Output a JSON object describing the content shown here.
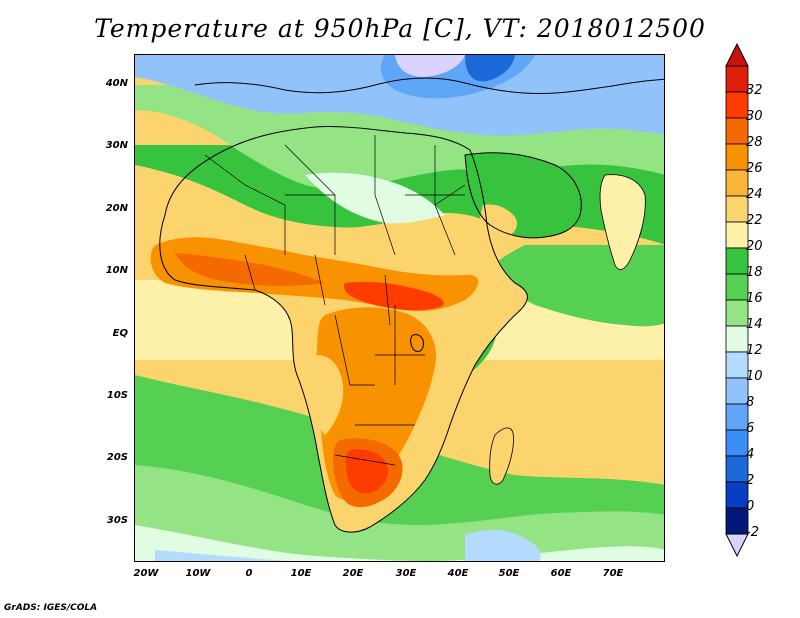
{
  "title": "Temperature at 950hPa [C], VT: 2018012500",
  "footer": "GrADS: IGES/COLA",
  "map": {
    "variable": "Temperature at 950hPa",
    "units": "C",
    "valid_time": "2018012500",
    "lon_range": [
      -20,
      80
    ],
    "lat_range": [
      -35,
      45
    ],
    "lat_ticks": [
      {
        "value": 40,
        "label": "40N"
      },
      {
        "value": 30,
        "label": "30N"
      },
      {
        "value": 20,
        "label": "20N"
      },
      {
        "value": 10,
        "label": "10N"
      },
      {
        "value": 0,
        "label": "EQ"
      },
      {
        "value": -10,
        "label": "10S"
      },
      {
        "value": -20,
        "label": "20S"
      },
      {
        "value": -30,
        "label": "30S"
      }
    ],
    "lon_ticks": [
      {
        "value": -20,
        "label": "20W"
      },
      {
        "value": -10,
        "label": "10W"
      },
      {
        "value": 0,
        "label": "0"
      },
      {
        "value": 10,
        "label": "10E"
      },
      {
        "value": 20,
        "label": "20E"
      },
      {
        "value": 30,
        "label": "30E"
      },
      {
        "value": 40,
        "label": "40E"
      },
      {
        "value": 50,
        "label": "50E"
      },
      {
        "value": 60,
        "label": "60E"
      },
      {
        "value": 70,
        "label": "70E"
      }
    ]
  },
  "colorbar": {
    "labels": [
      "32",
      "30",
      "28",
      "26",
      "24",
      "22",
      "20",
      "18",
      "16",
      "14",
      "12",
      "10",
      "8",
      "6",
      "4",
      "2",
      "0",
      "-2"
    ],
    "colors": [
      "#dc1e0a",
      "#ff3c00",
      "#f56a00",
      "#f99200",
      "#f9b63b",
      "#fcd46d",
      "#fdf1a9",
      "#37c33d",
      "#56d052",
      "#94e384",
      "#e0fce2",
      "#b4dbfd",
      "#91c3fa",
      "#5fa6f8",
      "#3c8df4",
      "#1c6ad9",
      "#0a3ec2",
      "#02197a"
    ],
    "arrow_top_color": "#c8140a",
    "arrow_bottom_color": "#dcd2ff"
  }
}
